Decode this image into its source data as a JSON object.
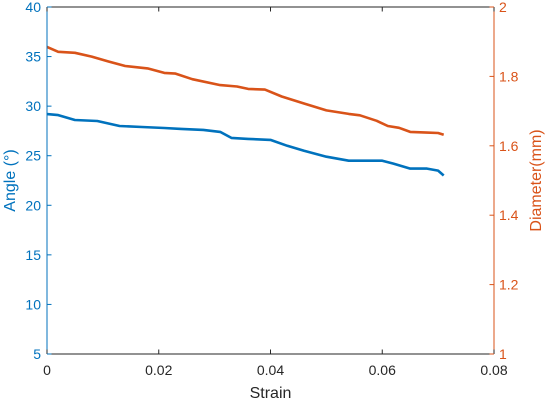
{
  "chart_data": {
    "type": "line",
    "title": "",
    "xlabel": "Strain",
    "ylabel_left": "Angle (°)",
    "ylabel_right": "Diameter(mm)",
    "xlim": [
      0,
      0.08
    ],
    "ylim_left": [
      5,
      40
    ],
    "ylim_right": [
      1,
      2
    ],
    "x_ticks": [
      0,
      0.02,
      0.04,
      0.06,
      0.08
    ],
    "x_tick_labels": [
      "0",
      "0.02",
      "0.04",
      "0.06",
      "0.08"
    ],
    "y_left_ticks": [
      5,
      10,
      15,
      20,
      25,
      30,
      35,
      40
    ],
    "y_left_tick_labels": [
      "5",
      "10",
      "15",
      "20",
      "25",
      "30",
      "35",
      "40"
    ],
    "y_right_ticks": [
      1,
      1.2,
      1.4,
      1.6,
      1.8,
      2
    ],
    "y_right_tick_labels": [
      "1",
      "1.2",
      "1.4",
      "1.6",
      "1.8",
      "2"
    ],
    "grid": false,
    "legend": "none",
    "colors": {
      "left_axis": "#0072BD",
      "right_axis": "#D95319",
      "x_axis": "#262626"
    },
    "series": [
      {
        "axis": "left",
        "color": "#0072BD",
        "x": [
          0,
          0.002,
          0.005,
          0.009,
          0.013,
          0.017,
          0.021,
          0.024,
          0.028,
          0.031,
          0.033,
          0.036,
          0.04,
          0.043,
          0.046,
          0.05,
          0.054,
          0.057,
          0.06,
          0.062,
          0.065,
          0.068,
          0.07,
          0.071
        ],
        "values": [
          29.2,
          29.1,
          28.6,
          28.5,
          28.0,
          27.9,
          27.8,
          27.7,
          27.6,
          27.4,
          26.8,
          26.7,
          26.6,
          26.0,
          25.5,
          24.9,
          24.5,
          24.5,
          24.5,
          24.2,
          23.7,
          23.7,
          23.5,
          23.0
        ]
      },
      {
        "axis": "right",
        "color": "#D95319",
        "x": [
          0,
          0.002,
          0.005,
          0.008,
          0.011,
          0.014,
          0.018,
          0.021,
          0.023,
          0.026,
          0.031,
          0.034,
          0.036,
          0.039,
          0.042,
          0.046,
          0.05,
          0.054,
          0.056,
          0.059,
          0.061,
          0.063,
          0.065,
          0.068,
          0.07,
          0.071
        ],
        "values": [
          1.885,
          1.871,
          1.868,
          1.857,
          1.843,
          1.83,
          1.823,
          1.81,
          1.808,
          1.792,
          1.775,
          1.771,
          1.764,
          1.762,
          1.742,
          1.722,
          1.702,
          1.692,
          1.688,
          1.672,
          1.657,
          1.652,
          1.64,
          1.638,
          1.637,
          1.632
        ]
      }
    ]
  }
}
